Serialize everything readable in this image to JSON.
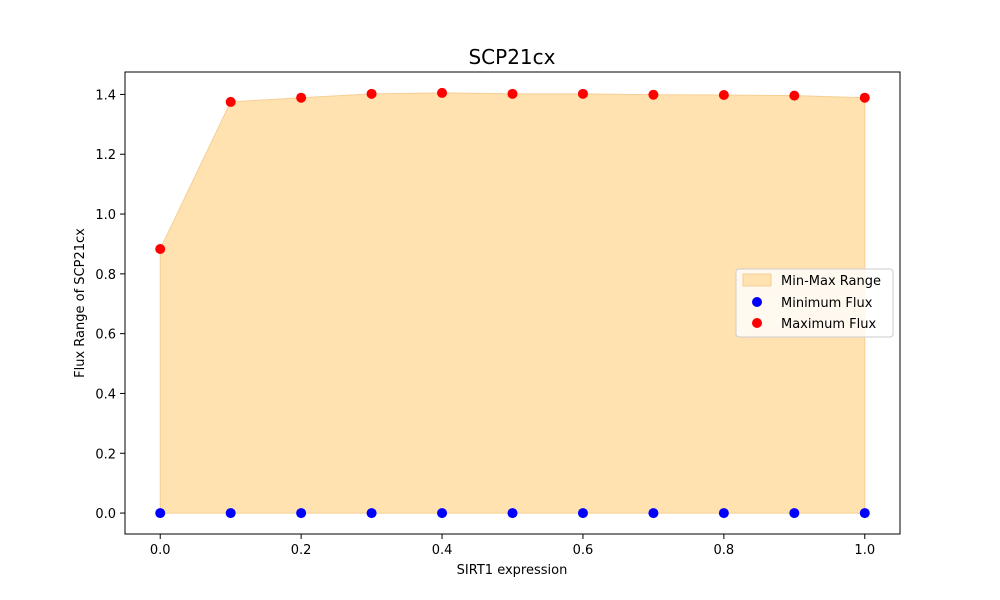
{
  "chart_data": {
    "type": "scatter",
    "title": "SCP21cx",
    "xlabel": "SIRT1 expression",
    "ylabel": "Flux Range of SCP21cx",
    "x": [
      0.0,
      0.1,
      0.2,
      0.3,
      0.4,
      0.5,
      0.6,
      0.7,
      0.8,
      0.9,
      1.0
    ],
    "series": [
      {
        "name": "Minimum Flux",
        "color": "#0000ff",
        "values": [
          0,
          0,
          0,
          0,
          0,
          0,
          0,
          0,
          0,
          0,
          0
        ]
      },
      {
        "name": "Maximum Flux",
        "color": "#ff0000",
        "values": [
          0.883,
          1.375,
          1.389,
          1.402,
          1.405,
          1.402,
          1.402,
          1.399,
          1.398,
          1.396,
          1.389
        ]
      }
    ],
    "fill": {
      "name": "Min-Max Range",
      "color": "#ffe2b0",
      "edge": "#f5cf95"
    },
    "xlim": [
      -0.05,
      1.05
    ],
    "ylim": [
      -0.07,
      1.475
    ],
    "xticks": [
      0.0,
      0.2,
      0.4,
      0.6,
      0.8,
      1.0
    ],
    "xtick_labels": [
      "0.0",
      "0.2",
      "0.4",
      "0.6",
      "0.8",
      "1.0"
    ],
    "yticks": [
      0.0,
      0.2,
      0.4,
      0.6,
      0.8,
      1.0,
      1.2,
      1.4
    ],
    "ytick_labels": [
      "0.0",
      "0.2",
      "0.4",
      "0.6",
      "0.8",
      "1.0",
      "1.2",
      "1.4"
    ],
    "grid": false,
    "legend_position": "center-right"
  }
}
